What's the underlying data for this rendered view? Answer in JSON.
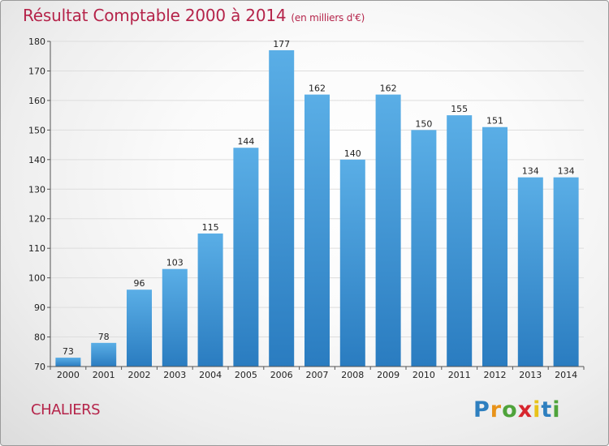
{
  "title": "Résultat Comptable 2000 à 2014",
  "subtitle": "(en milliers d'€)",
  "place": "CHALIERS",
  "logo": {
    "letters": [
      "P",
      "r",
      "o",
      "x",
      "i",
      "t",
      "i"
    ],
    "colors": [
      "#2e7fbf",
      "#e8931a",
      "#4fa33b",
      "#d7262e",
      "#e8c21a",
      "#2e7fbf",
      "#4fa33b"
    ]
  },
  "colors": {
    "title": "#b5244a",
    "bar_top": "#5aaee6",
    "bar_bottom": "#2a7cc0",
    "grid": "#dddddd",
    "axis": "#555555"
  },
  "chart_data": {
    "type": "bar",
    "categories": [
      "2000",
      "2001",
      "2002",
      "2003",
      "2004",
      "2005",
      "2006",
      "2007",
      "2008",
      "2009",
      "2010",
      "2011",
      "2012",
      "2013",
      "2014"
    ],
    "values": [
      73,
      78,
      96,
      103,
      115,
      144,
      177,
      162,
      140,
      162,
      150,
      155,
      151,
      134,
      134
    ],
    "ylim": [
      70,
      180
    ],
    "yticks": [
      70,
      80,
      90,
      100,
      110,
      120,
      130,
      140,
      150,
      160,
      170,
      180
    ],
    "xlabel": "",
    "ylabel": "",
    "grid": true
  }
}
